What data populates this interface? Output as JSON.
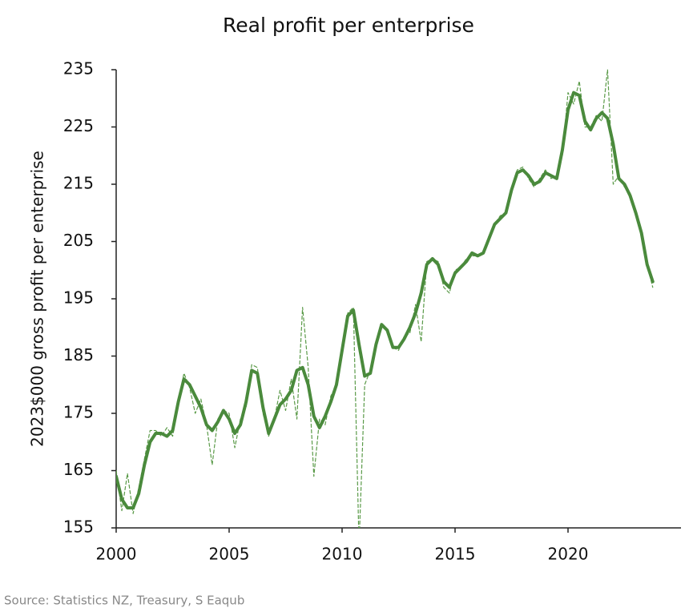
{
  "chart_data": {
    "type": "line",
    "title": "Real profit per enterprise",
    "y_label": "2023$000 gross profit per enterprise",
    "source": "Source: Statistics NZ, Treasury, S Eaqub",
    "x": [
      2000,
      2000.25,
      2000.5,
      2000.75,
      2001,
      2001.25,
      2001.5,
      2001.75,
      2002,
      2002.25,
      2002.5,
      2002.75,
      2003,
      2003.25,
      2003.5,
      2003.75,
      2004,
      2004.25,
      2004.5,
      2004.75,
      2005,
      2005.25,
      2005.5,
      2005.75,
      2006,
      2006.25,
      2006.5,
      2006.75,
      2007,
      2007.25,
      2007.5,
      2007.75,
      2008,
      2008.25,
      2008.5,
      2008.75,
      2009,
      2009.25,
      2009.5,
      2009.75,
      2010,
      2010.25,
      2010.5,
      2010.75,
      2011,
      2011.25,
      2011.5,
      2011.75,
      2012,
      2012.25,
      2012.5,
      2012.75,
      2013,
      2013.25,
      2013.5,
      2013.75,
      2014,
      2014.25,
      2014.5,
      2014.75,
      2015,
      2015.25,
      2015.5,
      2015.75,
      2016,
      2016.25,
      2016.5,
      2016.75,
      2017,
      2017.25,
      2017.5,
      2017.75,
      2018,
      2018.25,
      2018.5,
      2018.75,
      2019,
      2019.25,
      2019.5,
      2019.75,
      2020,
      2020.25,
      2020.5,
      2020.75,
      2021,
      2021.25,
      2021.5,
      2021.75,
      2022,
      2022.25,
      2022.5,
      2022.75,
      2023,
      2023.25,
      2023.5,
      2023.75
    ],
    "series": [
      {
        "color": "#5a9a48",
        "line_style": "dashed",
        "values": [
          165,
          158,
          164.5,
          157.5,
          162,
          167,
          172,
          172,
          171,
          172.5,
          171,
          177,
          182,
          179.5,
          175,
          177.5,
          173,
          166,
          174,
          175.5,
          175,
          169,
          174,
          176,
          183.5,
          183,
          175,
          171,
          174,
          179,
          175.5,
          181,
          174,
          193.5,
          183,
          164,
          174,
          173,
          178,
          180,
          186,
          192.5,
          193.5,
          152,
          180,
          182.5,
          187,
          190,
          189.5,
          186.5,
          186,
          188.5,
          189,
          194,
          187.5,
          201.5,
          202,
          201.5,
          197,
          196,
          200,
          200.5,
          202,
          202.5,
          202.5,
          203,
          206,
          208,
          209.5,
          210,
          214.5,
          217.5,
          218,
          216,
          214.5,
          216,
          217.5,
          216,
          216.5,
          220,
          231,
          229,
          233,
          225,
          225,
          227,
          226,
          235,
          215,
          216.5,
          214.5,
          213.5,
          209.5,
          206,
          201,
          197
        ]
      },
      {
        "color": "#4a8a3c",
        "line_style": "solid",
        "values": [
          164,
          160,
          158.5,
          158.5,
          161,
          166,
          170,
          171.5,
          171.5,
          171,
          172,
          177,
          181,
          180,
          178,
          176,
          173,
          172,
          173.5,
          175.5,
          174,
          171.5,
          173,
          177,
          182.5,
          182,
          176,
          171.5,
          174,
          176.5,
          177.5,
          179,
          182.5,
          183,
          180,
          174.5,
          172.5,
          174.5,
          177,
          180,
          186,
          192,
          193,
          187,
          181.5,
          182,
          187,
          190.5,
          189.5,
          186.5,
          186.5,
          188,
          190,
          192.5,
          196,
          201,
          202,
          201,
          198,
          197,
          199.5,
          200.5,
          201.5,
          203,
          202.5,
          203,
          205.5,
          208,
          209,
          210,
          214,
          217,
          217.5,
          216.5,
          215,
          215.5,
          217,
          216.5,
          216,
          221,
          228,
          231,
          230.5,
          226,
          224.5,
          226.5,
          227.5,
          226.5,
          222,
          216,
          215,
          213,
          210,
          206.5,
          201,
          198
        ]
      }
    ],
    "xlim": [
      2000,
      2025
    ],
    "xticks": [
      2000,
      2005,
      2010,
      2015,
      2020
    ],
    "ylim": [
      155,
      235
    ],
    "yticks": [
      155,
      165,
      175,
      185,
      195,
      205,
      215,
      225,
      235
    ]
  }
}
